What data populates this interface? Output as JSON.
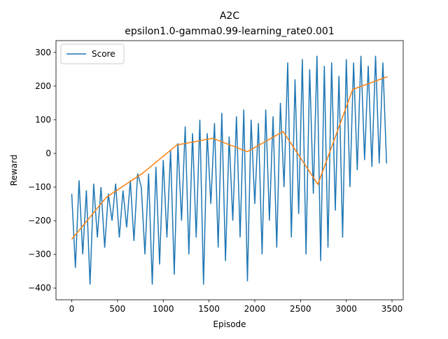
{
  "chart_data": {
    "type": "line",
    "title": "A2C",
    "subtitle": "epsilon1.0-gamma0.99-learning_rate0.001",
    "xlabel": "Episode",
    "ylabel": "Reward",
    "xlim": [
      -172,
      3622
    ],
    "ylim": [
      -435,
      335
    ],
    "xticks": [
      0,
      500,
      1000,
      1500,
      2000,
      2500,
      3000,
      3500
    ],
    "yticks": [
      {
        "value": -400,
        "label": "−400"
      },
      {
        "value": -300,
        "label": "−300"
      },
      {
        "value": -200,
        "label": "−200"
      },
      {
        "value": -100,
        "label": "−100"
      },
      0,
      100,
      200,
      300
    ],
    "legend": "upper left",
    "series": [
      {
        "name": "Score",
        "color": "#1f77b4",
        "x": [
          0,
          40,
          80,
          120,
          160,
          200,
          240,
          280,
          320,
          360,
          400,
          440,
          480,
          520,
          560,
          600,
          640,
          680,
          720,
          760,
          800,
          840,
          880,
          920,
          960,
          1000,
          1040,
          1080,
          1120,
          1160,
          1200,
          1240,
          1280,
          1320,
          1360,
          1400,
          1440,
          1480,
          1520,
          1560,
          1600,
          1640,
          1680,
          1720,
          1760,
          1800,
          1840,
          1880,
          1920,
          1960,
          2000,
          2040,
          2080,
          2120,
          2160,
          2200,
          2240,
          2280,
          2320,
          2360,
          2400,
          2440,
          2480,
          2520,
          2560,
          2600,
          2640,
          2680,
          2720,
          2760,
          2800,
          2840,
          2880,
          2920,
          2960,
          3000,
          3040,
          3080,
          3120,
          3160,
          3200,
          3240,
          3280,
          3320,
          3360,
          3400,
          3440
        ],
        "values": [
          -120,
          -340,
          -80,
          -300,
          -110,
          -390,
          -90,
          -250,
          -100,
          -280,
          -120,
          -200,
          -90,
          -250,
          -110,
          -220,
          -80,
          -260,
          -60,
          -100,
          -300,
          -60,
          -390,
          -40,
          -330,
          -20,
          -250,
          10,
          -360,
          30,
          -200,
          80,
          -300,
          60,
          -250,
          100,
          -390,
          60,
          -150,
          90,
          -280,
          120,
          -320,
          50,
          -200,
          110,
          -250,
          130,
          -380,
          100,
          -150,
          90,
          -300,
          130,
          -200,
          110,
          -280,
          150,
          -100,
          270,
          -250,
          220,
          -180,
          280,
          -300,
          250,
          -120,
          290,
          -320,
          260,
          -280,
          270,
          -170,
          230,
          -250,
          280,
          -100,
          270,
          -50,
          290,
          -20,
          260,
          -40,
          290,
          -30,
          270,
          -30
        ]
      },
      {
        "color": "#ff7f0e",
        "x": [
          0,
          380,
          770,
          1150,
          1540,
          1920,
          2310,
          2690,
          3070,
          3450
        ],
        "values": [
          -255,
          -130,
          -60,
          25,
          45,
          5,
          65,
          -92,
          190,
          228
        ]
      }
    ]
  }
}
